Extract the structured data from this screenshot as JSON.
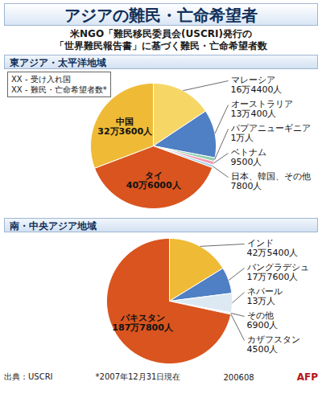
{
  "header": {
    "title": "アジアの難民・亡命希望者",
    "subtitle": [
      "米NGO「難民移民委員会(USCRI)発行の",
      "「世界難民報告書」に基づく難民・亡命希望者数"
    ]
  },
  "key": [
    "XX - 受け入れ国",
    "XX - 難民・亡命希望者数*"
  ],
  "chart_data": [
    {
      "type": "pie",
      "title": "東アジア・太平洋地域",
      "categories": [
        "マレーシア",
        "オーストラリア",
        "パプアニューギニア",
        "ベトナム",
        "日本、韓国、その他",
        "タイ",
        "中国"
      ],
      "values": [
        164400,
        130400,
        10000,
        9500,
        7800,
        406000,
        323600
      ],
      "value_labels": [
        "16万4400人",
        "13万400人",
        "1万人",
        "9500人",
        "7800人",
        "40万6000人",
        "32万3600人"
      ],
      "colors": [
        "#f6d766",
        "#4f7fc4",
        "#8fcfae",
        "#f29bb5",
        "#a9d6ea",
        "#d9541e",
        "#efbb36"
      ],
      "data_labels": true
    },
    {
      "type": "pie",
      "title": "南・中央アジア地域",
      "categories": [
        "インド",
        "バングラデシュ",
        "ネパール",
        "その他",
        "カザフスタン",
        "パキスタン"
      ],
      "values": [
        425400,
        177600,
        130000,
        6900,
        4500,
        1877800
      ],
      "value_labels": [
        "42万5400人",
        "17万7600人",
        "13万人",
        "6900人",
        "4500人",
        "187万7800人"
      ],
      "colors": [
        "#efbb36",
        "#4f7fc4",
        "#dce9f2",
        "#f6c0b0",
        "#8fcfae",
        "#d9541e"
      ],
      "data_labels": true
    }
  ],
  "footer": {
    "source": "出典：USCRI",
    "note": "*2007年12月31日現在",
    "code": "200608",
    "agency": "AFP"
  }
}
